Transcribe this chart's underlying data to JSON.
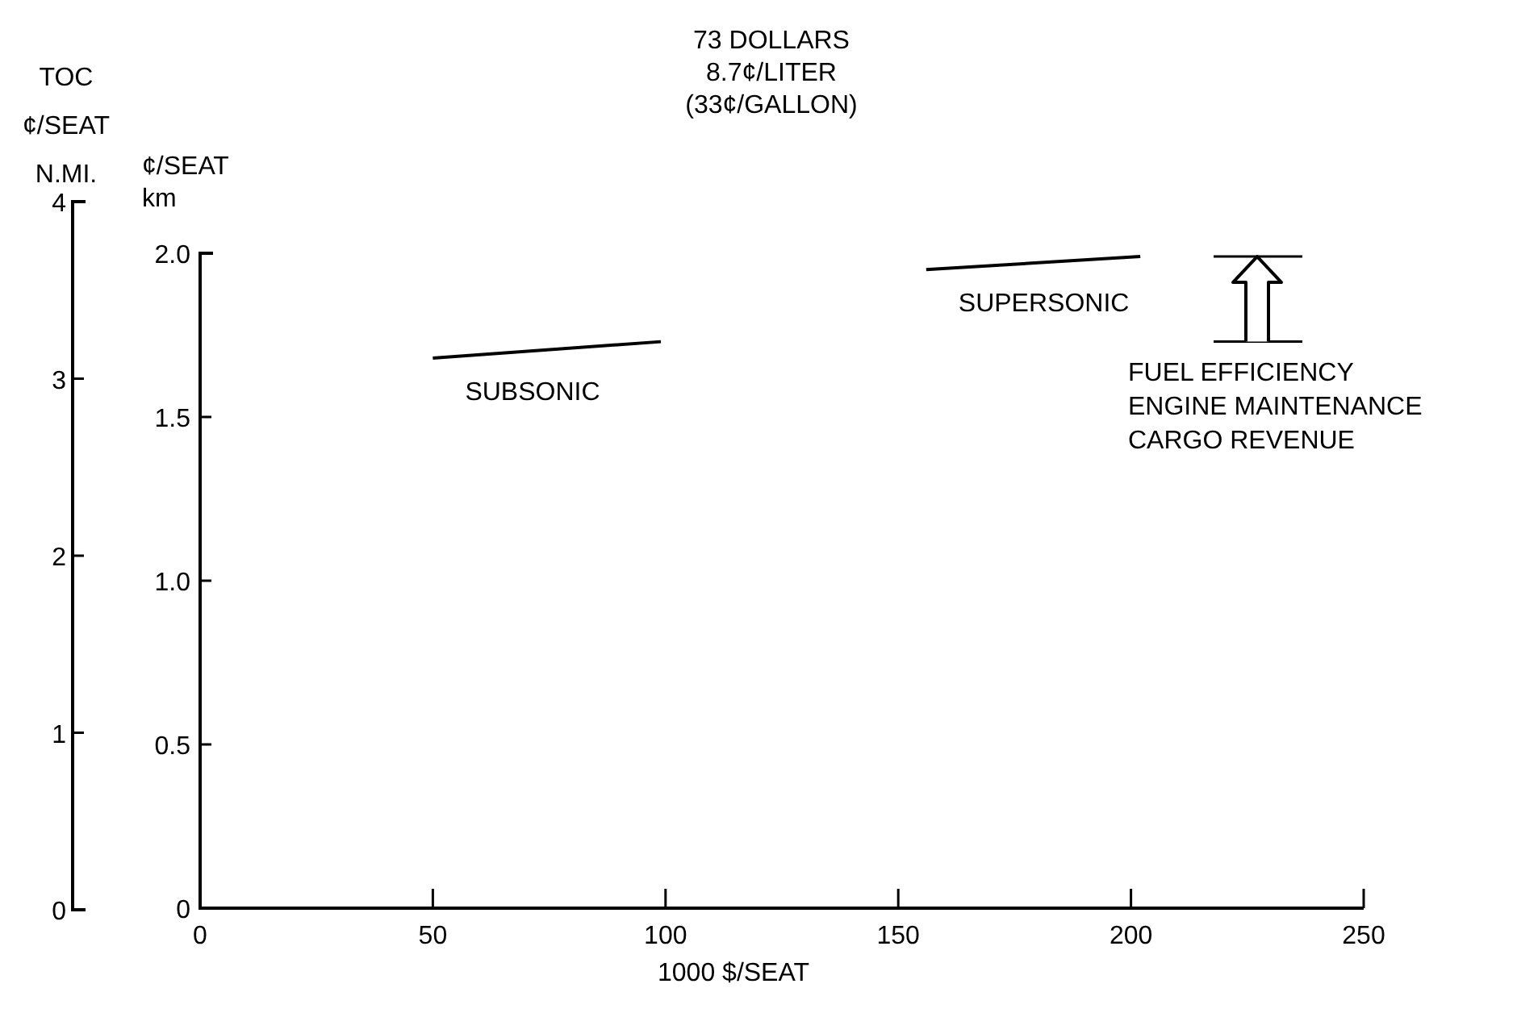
{
  "chart_data": {
    "type": "line",
    "title": "73 DOLLARS\n8.7¢/LITER\n(33¢/GALLON)",
    "xlabel": "1000 $/SEAT",
    "ylabel": "¢/SEAT\nkm",
    "y2label": "TOC\n¢/SEAT\nN.MI.",
    "xlim": [
      0,
      250
    ],
    "xticks": [
      0,
      50,
      100,
      150,
      200,
      250
    ],
    "ylim": [
      0,
      2.0
    ],
    "yticks": [
      {
        "value": 0,
        "label": "0"
      },
      {
        "value": 0.5,
        "label": "0.5"
      },
      {
        "value": 1,
        "label": "1.0"
      },
      {
        "value": 1.5,
        "label": "1.5"
      },
      {
        "value": 2,
        "label": "2.0"
      }
    ],
    "y2lim": [
      0,
      4
    ],
    "y2ticks": [
      0,
      1,
      2,
      3,
      4
    ],
    "series": [
      {
        "name": "SUBSONIC",
        "color": "#000000",
        "x": [
          50,
          99
        ],
        "values": [
          1.68,
          1.73
        ]
      },
      {
        "name": "SUPERSONIC",
        "color": "#000000",
        "x": [
          156,
          202
        ],
        "values": [
          1.95,
          1.99
        ]
      }
    ],
    "annotations": [
      "FUEL EFFICIENCY\nENGINE MAINTENANCE\nCARGO REVENUE"
    ],
    "legend": false,
    "grid": false,
    "marker": "none",
    "line_style": "solid"
  }
}
